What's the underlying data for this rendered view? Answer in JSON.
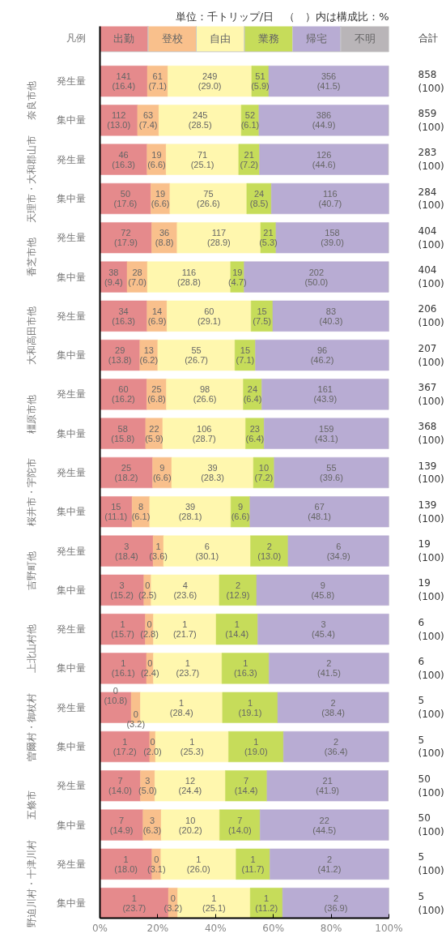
{
  "chart_data": {
    "type": "bar",
    "orientation": "horizontal",
    "stacked": true,
    "legend": "top",
    "legend_title": "凡例",
    "annotations": [
      "単位：千トリップ/日　（　）内は構成比：%",
      "合計",
      "奈良市他",
      "天理市・大和郡山市",
      "香芝市他",
      "大和高田市他",
      "橿原市他",
      "桜井市・宇陀市",
      "吉野町他",
      "上北山村他",
      "曽爾村・御杖村",
      "五條市",
      "野迫川村・十津川村"
    ],
    "categories": [
      "発生量",
      "集中量",
      "発生量",
      "集中量",
      "発生量",
      "集中量",
      "発生量",
      "集中量",
      "発生量",
      "集中量",
      "発生量",
      "集中量",
      "発生量",
      "集中量",
      "発生量",
      "集中量",
      "発生量",
      "集中量",
      "発生量",
      "集中量",
      "発生量",
      "集中量"
    ],
    "xlim": [
      0,
      100
    ],
    "xticks": [
      {
        "value": 0,
        "label": "0%"
      },
      {
        "value": 20,
        "label": "20%"
      },
      {
        "value": 40,
        "label": "40%"
      },
      {
        "value": 60,
        "label": "60%"
      },
      {
        "value": 80,
        "label": "80%"
      },
      {
        "value": 100,
        "label": "100%"
      }
    ],
    "series": [
      {
        "name": "出勤",
        "color": "#e58a8c",
        "values": [
          16.4,
          13.0,
          16.3,
          17.6,
          17.9,
          9.4,
          16.3,
          13.8,
          16.2,
          15.8,
          18.2,
          11.1,
          18.4,
          15.2,
          15.7,
          16.1,
          10.8,
          17.2,
          14.0,
          14.9,
          18.0,
          23.7
        ],
        "value_labels": [
          "141\n(16.4)",
          "112\n(13.0)",
          "46\n(16.3)",
          "50\n(17.6)",
          "72\n(17.9)",
          "38\n(9.4)",
          "34\n(16.3)",
          "29\n(13.8)",
          "60\n(16.2)",
          "58\n(15.8)",
          "25\n(18.2)",
          "15\n(11.1)",
          "3\n(18.4)",
          "3\n(15.2)",
          "1\n(15.7)",
          "1\n(16.1)",
          "0\n(10.8)",
          "1\n(17.2)",
          "7\n(14.0)",
          "7\n(14.9)",
          "1\n(18.0)",
          "1\n(23.7)"
        ]
      },
      {
        "name": "登校",
        "color": "#f9c08c",
        "values": [
          7.1,
          7.4,
          6.6,
          6.6,
          8.8,
          7.0,
          6.9,
          6.2,
          6.8,
          5.9,
          6.6,
          6.1,
          3.6,
          2.5,
          2.8,
          2.4,
          3.2,
          2.0,
          5.0,
          6.3,
          3.1,
          3.2
        ],
        "value_labels": [
          "61\n(7.1)",
          "63\n(7.4)",
          "19\n(6.6)",
          "19\n(6.6)",
          "36\n(8.8)",
          "28\n(7.0)",
          "14\n(6.9)",
          "13\n(6.2)",
          "25\n(6.8)",
          "22\n(5.9)",
          "9\n(6.6)",
          "8\n(6.1)",
          "1\n(3.6)",
          "0\n(2.5)",
          "0\n(2.8)",
          "0\n(2.4)",
          "0\n(3.2)",
          "0\n(2.0)",
          "3\n(5.0)",
          "3\n(6.3)",
          "0\n(3.1)",
          "0\n(3.2)"
        ]
      },
      {
        "name": "自由",
        "color": "#fff7ae",
        "values": [
          29.0,
          28.5,
          25.1,
          26.6,
          28.9,
          28.8,
          29.1,
          26.7,
          26.6,
          28.7,
          28.3,
          28.1,
          30.1,
          23.6,
          21.7,
          23.7,
          28.4,
          25.3,
          24.4,
          20.2,
          26.0,
          25.1
        ],
        "value_labels": [
          "249\n(29.0)",
          "245\n(28.5)",
          "71\n(25.1)",
          "75\n(26.6)",
          "117\n(28.9)",
          "116\n(28.8)",
          "60\n(29.1)",
          "55\n(26.7)",
          "98\n(26.6)",
          "106\n(28.7)",
          "39\n(28.3)",
          "39\n(28.1)",
          "6\n(30.1)",
          "4\n(23.6)",
          "1\n(21.7)",
          "1\n(23.7)",
          "1\n(28.4)",
          "1\n(25.3)",
          "12\n(24.4)",
          "10\n(20.2)",
          "1\n(26.0)",
          "1\n(25.1)"
        ]
      },
      {
        "name": "業務",
        "color": "#c6dc5a",
        "values": [
          5.9,
          6.1,
          7.2,
          8.5,
          5.3,
          4.7,
          7.5,
          7.1,
          6.4,
          6.4,
          7.2,
          6.6,
          13.0,
          12.9,
          14.4,
          16.3,
          19.1,
          19.0,
          14.4,
          14.0,
          11.7,
          11.2
        ],
        "value_labels": [
          "51\n(5.9)",
          "52\n(6.1)",
          "21\n(7.2)",
          "24\n(8.5)",
          "21\n(5.3)",
          "19\n(4.7)",
          "15\n(7.5)",
          "15\n(7.1)",
          "24\n(6.4)",
          "23\n(6.4)",
          "10\n(7.2)",
          "9\n(6.6)",
          "2\n(13.0)",
          "2\n(12.9)",
          "1\n(14.4)",
          "1\n(16.3)",
          "1\n(19.1)",
          "1\n(19.0)",
          "7\n(14.4)",
          "7\n(14.0)",
          "1\n(11.7)",
          "1\n(11.2)"
        ]
      },
      {
        "name": "帰宅",
        "color": "#b8acd3",
        "values": [
          41.5,
          44.9,
          44.6,
          40.7,
          39.0,
          50.0,
          40.3,
          46.2,
          43.9,
          43.1,
          39.6,
          48.1,
          34.9,
          45.8,
          45.4,
          41.5,
          38.4,
          36.4,
          41.9,
          44.5,
          41.2,
          36.9
        ],
        "value_labels": [
          "356\n(41.5)",
          "386\n(44.9)",
          "126\n(44.6)",
          "116\n(40.7)",
          "158\n(39.0)",
          "202\n(50.0)",
          "83\n(40.3)",
          "96\n(46.2)",
          "161\n(43.9)",
          "159\n(43.1)",
          "55\n(39.6)",
          "67\n(48.1)",
          "6\n(34.9)",
          "9\n(45.8)",
          "3\n(45.4)",
          "2\n(41.5)",
          "2\n(38.4)",
          "2\n(36.4)",
          "21\n(41.9)",
          "22\n(44.5)",
          "2\n(41.2)",
          "2\n(36.9)"
        ]
      },
      {
        "name": "不明",
        "color": "#b9b5b8",
        "values": [
          0,
          0,
          0,
          0,
          0,
          0,
          0,
          0,
          0,
          0,
          0,
          0,
          0,
          0,
          0,
          0,
          0,
          0,
          0,
          0,
          0,
          0
        ]
      }
    ],
    "totals": [
      "858\n(100)",
      "859\n(100)",
      "283\n(100)",
      "284\n(100)",
      "404\n(100)",
      "404\n(100)",
      "206\n(100)",
      "207\n(100)",
      "367\n(100)",
      "368\n(100)",
      "139\n(100)",
      "139\n(100)",
      "19\n(100)",
      "19\n(100)",
      "6\n(100)",
      "6\n(100)",
      "5\n(100)",
      "5\n(100)",
      "50\n(100)",
      "50\n(100)",
      "5\n(100)",
      "5\n(100)"
    ]
  }
}
